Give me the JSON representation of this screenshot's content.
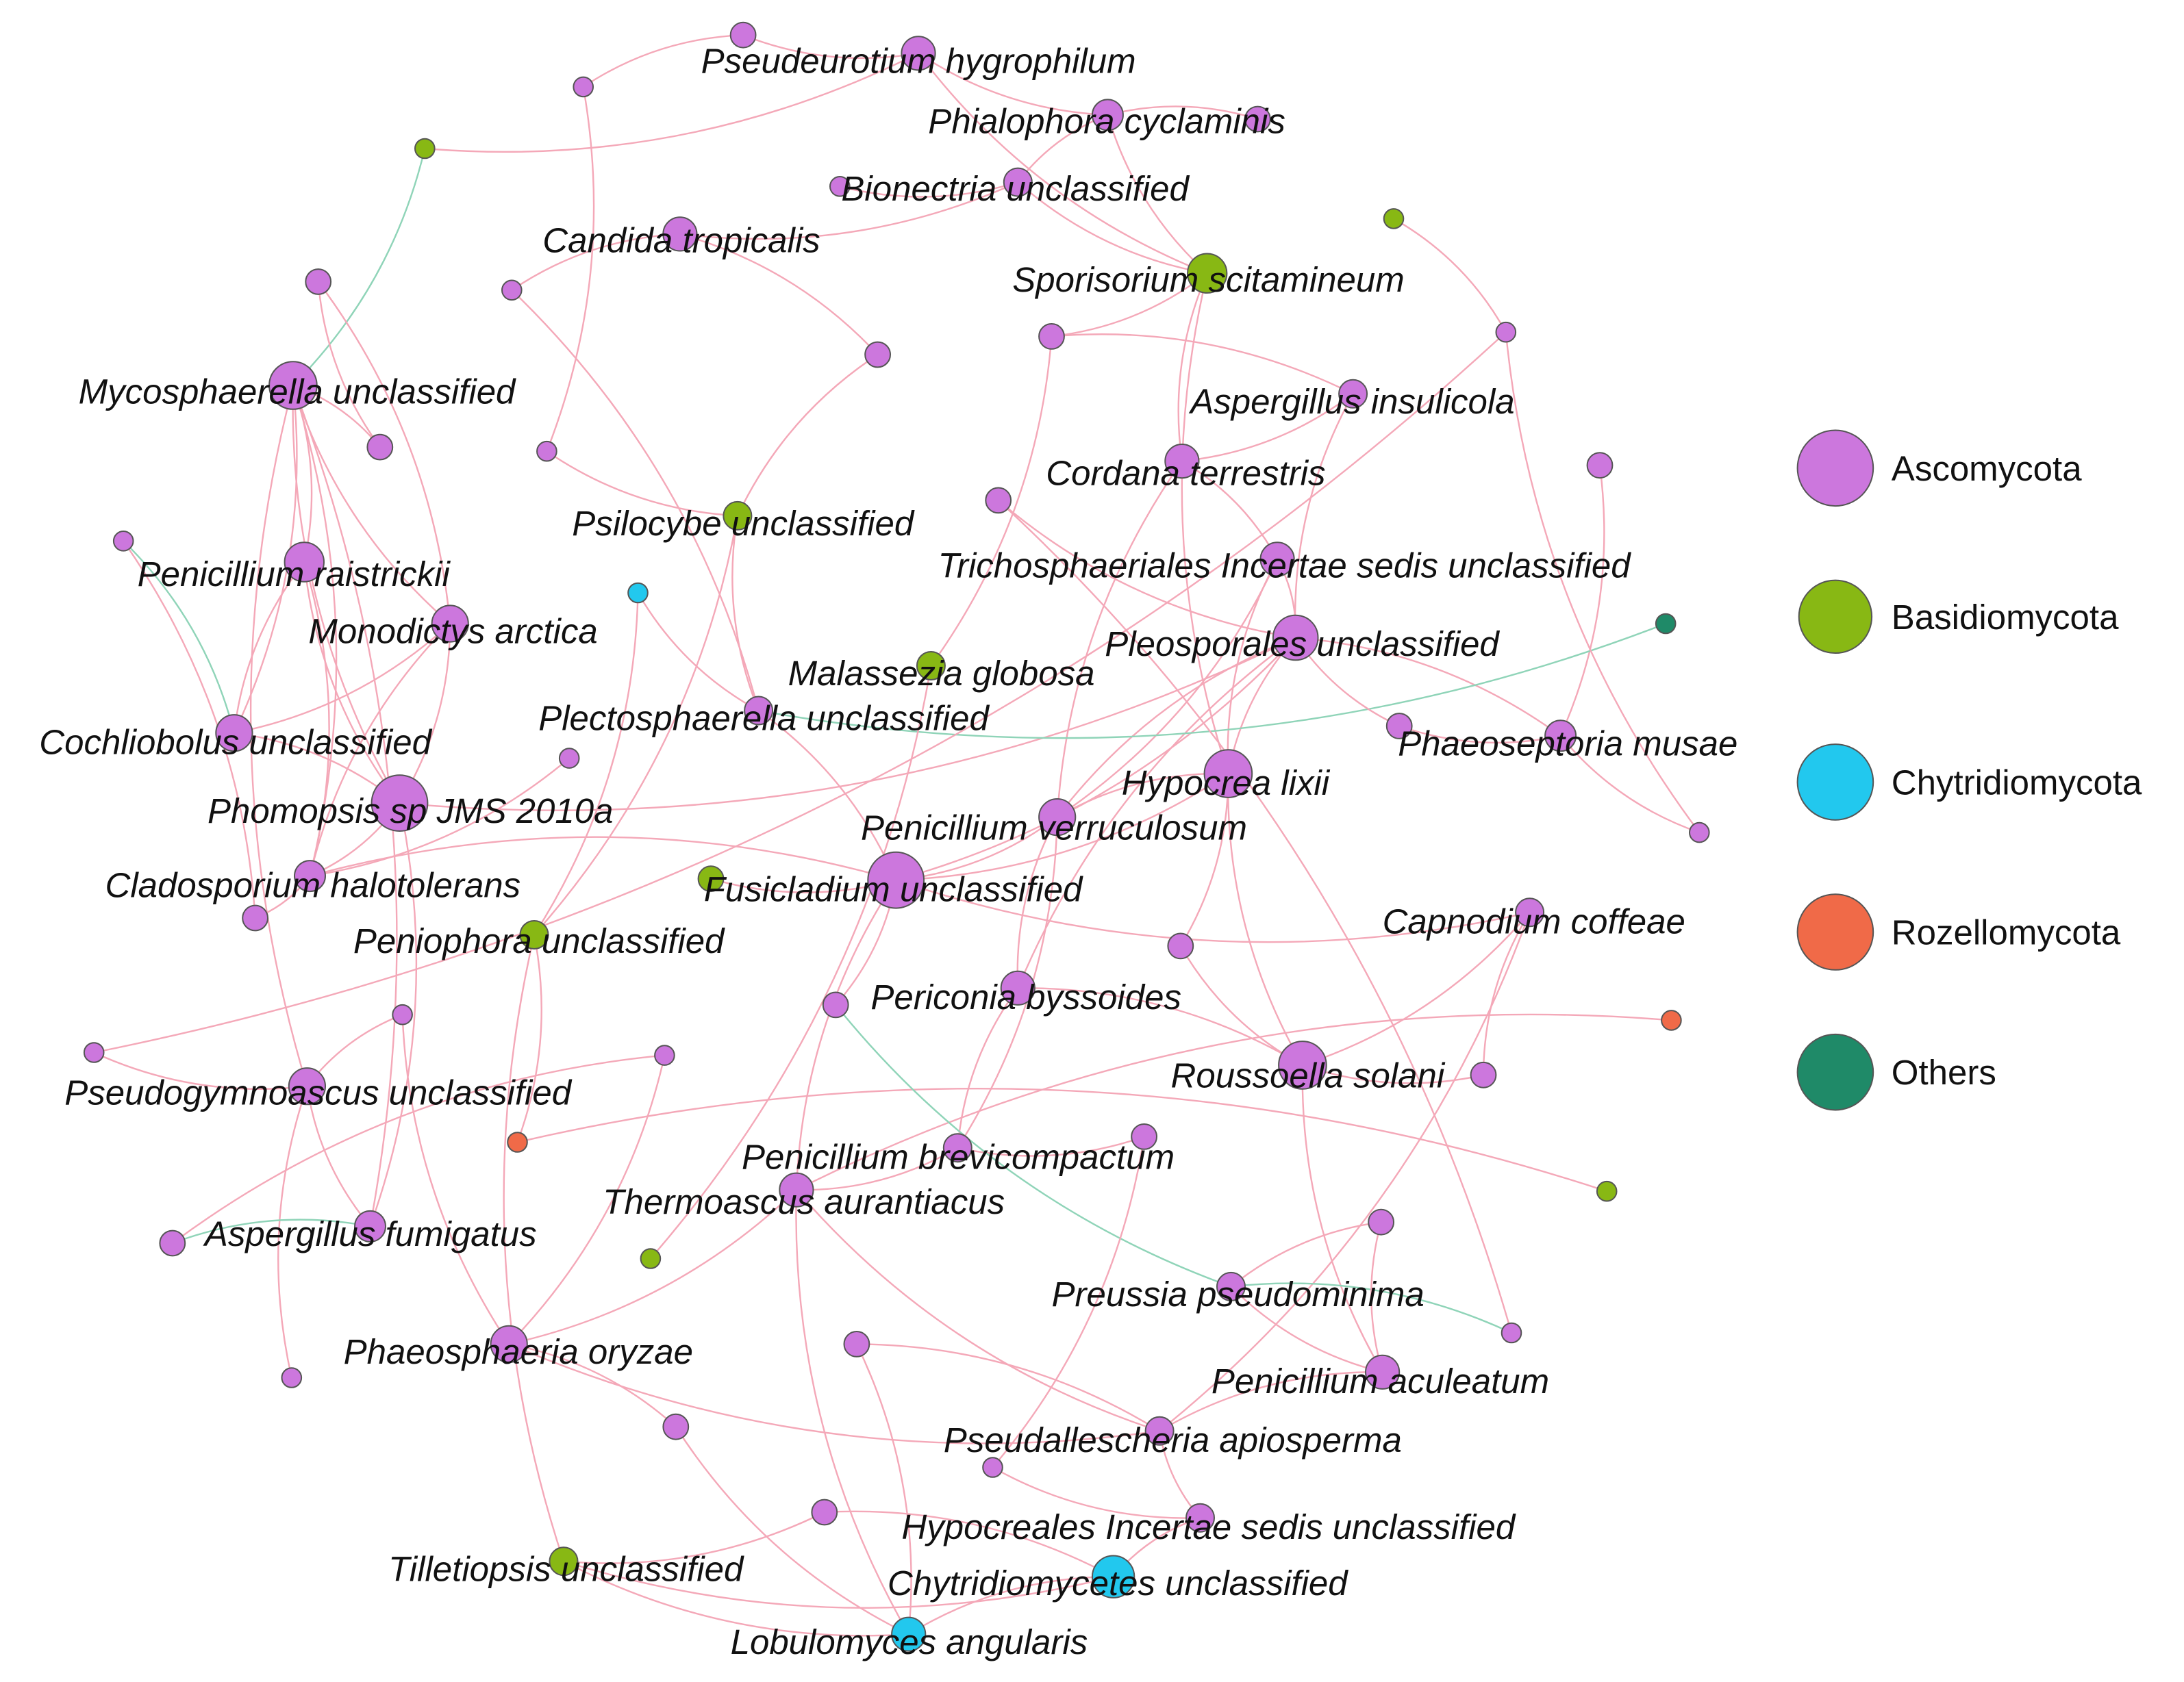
{
  "colors": {
    "Ascomycota": "#cc77dd",
    "Basidiomycota": "#88b814",
    "Chytridiomycota": "#22c8ee",
    "Rozellomycota": "#f06a48",
    "Others": "#1f8a68",
    "edge_positive": "#f4a8b8",
    "edge_negative": "#8fd4b8"
  },
  "legend": [
    {
      "label": "Ascomycota",
      "group": "Ascomycota"
    },
    {
      "label": "Basidiomycota",
      "group": "Basidiomycota"
    },
    {
      "label": "Chytridiomycota",
      "group": "Chytridiomycota"
    },
    {
      "label": "Rozellomycota",
      "group": "Rozellomycota"
    },
    {
      "label": "Others",
      "group": "Others"
    }
  ],
  "nodes": [
    {
      "id": "pseudeurotium",
      "label": "Pseudeurotium hygrophilum",
      "group": "Ascomycota"
    },
    {
      "id": "phialophora",
      "label": "Phialophora cyclaminis",
      "group": "Ascomycota"
    },
    {
      "id": "bionectria",
      "label": "Bionectria unclassified",
      "group": "Ascomycota"
    },
    {
      "id": "candida",
      "label": "Candida tropicalis",
      "group": "Ascomycota"
    },
    {
      "id": "sporisorium",
      "label": "Sporisorium scitamineum",
      "group": "Basidiomycota"
    },
    {
      "id": "mycosphaerella",
      "label": "Mycosphaerella unclassified",
      "group": "Ascomycota"
    },
    {
      "id": "aspergillus_ins",
      "label": "Aspergillus insulicola",
      "group": "Ascomycota"
    },
    {
      "id": "cordana",
      "label": "Cordana terrestris",
      "group": "Ascomycota"
    },
    {
      "id": "psilocybe",
      "label": "Psilocybe unclassified",
      "group": "Basidiomycota"
    },
    {
      "id": "penicillium_rai",
      "label": "Penicillium raistrickii",
      "group": "Ascomycota"
    },
    {
      "id": "trichosphaeriales",
      "label": "Trichosphaeriales Incertae sedis unclassified",
      "group": "Ascomycota"
    },
    {
      "id": "monodictys",
      "label": "Monodictys arctica",
      "group": "Ascomycota"
    },
    {
      "id": "pleosporales",
      "label": "Pleosporales unclassified",
      "group": "Ascomycota"
    },
    {
      "id": "malassezia",
      "label": "Malassezia globosa",
      "group": "Basidiomycota"
    },
    {
      "id": "plectosphaerella",
      "label": "Plectosphaerella unclassified",
      "group": "Ascomycota"
    },
    {
      "id": "cochliobolus",
      "label": "Cochliobolus unclassified",
      "group": "Ascomycota"
    },
    {
      "id": "phaeoseptoria",
      "label": "Phaeoseptoria musae",
      "group": "Ascomycota"
    },
    {
      "id": "hypocrea",
      "label": "Hypocrea lixii",
      "group": "Ascomycota"
    },
    {
      "id": "phomopsis",
      "label": "Phomopsis sp JMS 2010a",
      "group": "Ascomycota"
    },
    {
      "id": "penicillium_ver",
      "label": "Penicillium verruculosum",
      "group": "Ascomycota"
    },
    {
      "id": "cladosporium",
      "label": "Cladosporium halotolerans",
      "group": "Ascomycota"
    },
    {
      "id": "fusicladium",
      "label": "Fusicladium unclassified",
      "group": "Ascomycota"
    },
    {
      "id": "capnodium",
      "label": "Capnodium coffeae",
      "group": "Ascomycota"
    },
    {
      "id": "peniophora",
      "label": "Peniophora unclassified",
      "group": "Basidiomycota"
    },
    {
      "id": "periconia",
      "label": "Periconia byssoides",
      "group": "Ascomycota"
    },
    {
      "id": "pseudogymnoascus",
      "label": "Pseudogymnoascus unclassified",
      "group": "Ascomycota"
    },
    {
      "id": "roussoella",
      "label": "Roussoella solani",
      "group": "Ascomycota"
    },
    {
      "id": "penicillium_bre",
      "label": "Penicillium brevicompactum",
      "group": "Ascomycota"
    },
    {
      "id": "thermoascus",
      "label": "Thermoascus aurantiacus",
      "group": "Ascomycota"
    },
    {
      "id": "aspergillus_fum",
      "label": "Aspergillus fumigatus",
      "group": "Ascomycota"
    },
    {
      "id": "preussia",
      "label": "Preussia pseudominima",
      "group": "Ascomycota"
    },
    {
      "id": "phaeosphaeria",
      "label": "Phaeosphaeria oryzae",
      "group": "Ascomycota"
    },
    {
      "id": "penicillium_acu",
      "label": "Penicillium aculeatum",
      "group": "Ascomycota"
    },
    {
      "id": "pseudallescheria",
      "label": "Pseudallescheria apiosperma",
      "group": "Ascomycota"
    },
    {
      "id": "hypocreales",
      "label": "Hypocreales Incertae sedis unclassified",
      "group": "Ascomycota"
    },
    {
      "id": "tilletiopsis",
      "label": "Tilletiopsis unclassified",
      "group": "Basidiomycota"
    },
    {
      "id": "chytridiomycetes",
      "label": "Chytridiomycetes unclassified",
      "group": "Chytridiomycota"
    },
    {
      "id": "lobulomyces",
      "label": "Lobulomyces angularis",
      "group": "Chytridiomycota"
    },
    {
      "id": "u01",
      "label": "",
      "group": "Ascomycota"
    },
    {
      "id": "u02",
      "label": "",
      "group": "Basidiomycota"
    },
    {
      "id": "u03",
      "label": "",
      "group": "Ascomycota"
    },
    {
      "id": "u04",
      "label": "",
      "group": "Ascomycota"
    },
    {
      "id": "u05",
      "label": "",
      "group": "Ascomycota"
    },
    {
      "id": "u06",
      "label": "",
      "group": "Ascomycota"
    },
    {
      "id": "u07",
      "label": "",
      "group": "Ascomycota"
    },
    {
      "id": "u08",
      "label": "",
      "group": "Ascomycota"
    },
    {
      "id": "u09",
      "label": "",
      "group": "Ascomycota"
    },
    {
      "id": "u10",
      "label": "",
      "group": "Ascomycota"
    },
    {
      "id": "u11",
      "label": "",
      "group": "Ascomycota"
    },
    {
      "id": "u12",
      "label": "",
      "group": "Ascomycota"
    },
    {
      "id": "u13",
      "label": "",
      "group": "Ascomycota"
    },
    {
      "id": "u14",
      "label": "",
      "group": "Ascomycota"
    },
    {
      "id": "u15",
      "label": "",
      "group": "Chytridiomycota"
    },
    {
      "id": "u16",
      "label": "",
      "group": "Ascomycota"
    },
    {
      "id": "u17",
      "label": "",
      "group": "Others"
    },
    {
      "id": "u18",
      "label": "",
      "group": "Basidiomycota"
    },
    {
      "id": "u19",
      "label": "",
      "group": "Ascomycota"
    },
    {
      "id": "u20",
      "label": "",
      "group": "Ascomycota"
    },
    {
      "id": "u21",
      "label": "",
      "group": "Ascomycota"
    },
    {
      "id": "u22",
      "label": "",
      "group": "Ascomycota"
    },
    {
      "id": "u23",
      "label": "",
      "group": "Ascomycota"
    },
    {
      "id": "u24",
      "label": "",
      "group": "Basidiomycota"
    },
    {
      "id": "u25",
      "label": "",
      "group": "Ascomycota"
    },
    {
      "id": "u26",
      "label": "",
      "group": "Ascomycota"
    },
    {
      "id": "u27",
      "label": "",
      "group": "Ascomycota"
    },
    {
      "id": "u28",
      "label": "",
      "group": "Ascomycota"
    },
    {
      "id": "u29",
      "label": "",
      "group": "Rozellomycota"
    },
    {
      "id": "u30",
      "label": "",
      "group": "Ascomycota"
    },
    {
      "id": "u31",
      "label": "",
      "group": "Rozellomycota"
    },
    {
      "id": "u32",
      "label": "",
      "group": "Ascomycota"
    },
    {
      "id": "u33",
      "label": "",
      "group": "Ascomycota"
    },
    {
      "id": "u34",
      "label": "",
      "group": "Basidiomycota"
    },
    {
      "id": "u35",
      "label": "",
      "group": "Ascomycota"
    },
    {
      "id": "u36",
      "label": "",
      "group": "Ascomycota"
    },
    {
      "id": "u37",
      "label": "",
      "group": "Ascomycota"
    },
    {
      "id": "u38",
      "label": "",
      "group": "Ascomycota"
    },
    {
      "id": "u39",
      "label": "",
      "group": "Ascomycota"
    },
    {
      "id": "u40",
      "label": "",
      "group": "Ascomycota"
    },
    {
      "id": "u41",
      "label": "",
      "group": "Ascomycota"
    },
    {
      "id": "u42",
      "label": "",
      "group": "Basidiomycota"
    }
  ],
  "edges": [
    {
      "s": "mycosphaerella",
      "t": "penicillium_rai",
      "type": "positive"
    },
    {
      "s": "mycosphaerella",
      "t": "monodictys",
      "type": "positive"
    },
    {
      "s": "mycosphaerella",
      "t": "cochliobolus",
      "type": "positive"
    },
    {
      "s": "mycosphaerella",
      "t": "phomopsis",
      "type": "positive"
    },
    {
      "s": "mycosphaerella",
      "t": "cladosporium",
      "type": "positive"
    },
    {
      "s": "mycosphaerella",
      "t": "pseudogymnoascus",
      "type": "positive"
    },
    {
      "s": "mycosphaerella",
      "t": "aspergillus_fum",
      "type": "positive"
    },
    {
      "s": "mycosphaerella",
      "t": "u02",
      "type": "negative"
    },
    {
      "s": "mycosphaerella",
      "t": "u09",
      "type": "positive"
    },
    {
      "s": "penicillium_rai",
      "t": "phomopsis",
      "type": "positive"
    },
    {
      "s": "penicillium_rai",
      "t": "cladosporium",
      "type": "positive"
    },
    {
      "s": "penicillium_rai",
      "t": "cochliobolus",
      "type": "positive"
    },
    {
      "s": "monodictys",
      "t": "phomopsis",
      "type": "positive"
    },
    {
      "s": "monodictys",
      "t": "cladosporium",
      "type": "positive"
    },
    {
      "s": "monodictys",
      "t": "cochliobolus",
      "type": "positive"
    },
    {
      "s": "monodictys",
      "t": "u05",
      "type": "positive"
    },
    {
      "s": "cochliobolus",
      "t": "phomopsis",
      "type": "positive"
    },
    {
      "s": "cochliobolus",
      "t": "u10",
      "type": "negative"
    },
    {
      "s": "phomopsis",
      "t": "cladosporium",
      "type": "positive"
    },
    {
      "s": "phomopsis",
      "t": "pleosporales",
      "type": "positive"
    },
    {
      "s": "phomopsis",
      "t": "aspergillus_fum",
      "type": "positive"
    },
    {
      "s": "cladosporium",
      "t": "u14",
      "type": "positive"
    },
    {
      "s": "cladosporium",
      "t": "u11",
      "type": "positive"
    },
    {
      "s": "pseudogymnoascus",
      "t": "aspergillus_fum",
      "type": "positive"
    },
    {
      "s": "pseudogymnoascus",
      "t": "u27",
      "type": "positive"
    },
    {
      "s": "pseudogymnoascus",
      "t": "u33",
      "type": "positive"
    },
    {
      "s": "pseudogymnoascus",
      "t": "u26",
      "type": "positive"
    },
    {
      "s": "aspergillus_fum",
      "t": "u30",
      "type": "negative"
    },
    {
      "s": "u30",
      "t": "u28",
      "type": "positive"
    },
    {
      "s": "candida",
      "t": "bionectria",
      "type": "positive"
    },
    {
      "s": "candida",
      "t": "u08",
      "type": "positive"
    },
    {
      "s": "candida",
      "t": "u06",
      "type": "positive"
    },
    {
      "s": "bionectria",
      "t": "phialophora",
      "type": "positive"
    },
    {
      "s": "bionectria",
      "t": "sporisorium",
      "type": "positive"
    },
    {
      "s": "bionectria",
      "t": "u07",
      "type": "positive"
    },
    {
      "s": "pseudeurotium",
      "t": "phialophora",
      "type": "positive"
    },
    {
      "s": "pseudeurotium",
      "t": "u02",
      "type": "positive"
    },
    {
      "s": "pseudeurotium",
      "t": "sporisorium",
      "type": "positive"
    },
    {
      "s": "pseudeurotium",
      "t": "u01",
      "type": "positive"
    },
    {
      "s": "phialophora",
      "t": "sporisorium",
      "type": "positive"
    },
    {
      "s": "phialophora",
      "t": "u04",
      "type": "positive"
    },
    {
      "s": "sporisorium",
      "t": "cordana",
      "type": "positive"
    },
    {
      "s": "sporisorium",
      "t": "u12",
      "type": "positive"
    },
    {
      "s": "sporisorium",
      "t": "hypocrea",
      "type": "positive"
    },
    {
      "s": "u03",
      "t": "u13",
      "type": "positive"
    },
    {
      "s": "aspergillus_ins",
      "t": "pleosporales",
      "type": "positive"
    },
    {
      "s": "aspergillus_ins",
      "t": "cordana",
      "type": "positive"
    },
    {
      "s": "aspergillus_ins",
      "t": "u12",
      "type": "positive"
    },
    {
      "s": "cordana",
      "t": "trichosphaeriales",
      "type": "positive"
    },
    {
      "s": "cordana",
      "t": "penicillium_ver",
      "type": "positive"
    },
    {
      "s": "trichosphaeriales",
      "t": "pleosporales",
      "type": "positive"
    },
    {
      "s": "trichosphaeriales",
      "t": "hypocrea",
      "type": "positive"
    },
    {
      "s": "trichosphaeriales",
      "t": "penicillium_ver",
      "type": "positive"
    },
    {
      "s": "pleosporales",
      "t": "hypocrea",
      "type": "positive"
    },
    {
      "s": "pleosporales",
      "t": "phaeoseptoria",
      "type": "positive"
    },
    {
      "s": "pleosporales",
      "t": "penicillium_ver",
      "type": "positive"
    },
    {
      "s": "pleosporales",
      "t": "fusicladium",
      "type": "positive"
    },
    {
      "s": "pleosporales",
      "t": "periconia",
      "type": "positive"
    },
    {
      "s": "pleosporales",
      "t": "u20",
      "type": "positive"
    },
    {
      "s": "hypocrea",
      "t": "penicillium_ver",
      "type": "positive"
    },
    {
      "s": "hypocrea",
      "t": "fusicladium",
      "type": "positive"
    },
    {
      "s": "hypocrea",
      "t": "roussoella",
      "type": "positive"
    },
    {
      "s": "hypocrea",
      "t": "u25",
      "type": "positive"
    },
    {
      "s": "phaeoseptoria",
      "t": "u21",
      "type": "positive"
    },
    {
      "s": "phaeoseptoria",
      "t": "u22",
      "type": "positive"
    },
    {
      "s": "phaeoseptoria",
      "t": "u16",
      "type": "positive"
    },
    {
      "s": "plectosphaerella",
      "t": "u15",
      "type": "positive"
    },
    {
      "s": "plectosphaerella",
      "t": "u17",
      "type": "negative"
    },
    {
      "s": "plectosphaerella",
      "t": "fusicladium",
      "type": "positive"
    },
    {
      "s": "plectosphaerella",
      "t": "u06",
      "type": "positive"
    },
    {
      "s": "penicillium_ver",
      "t": "fusicladium",
      "type": "positive"
    },
    {
      "s": "penicillium_ver",
      "t": "periconia",
      "type": "positive"
    },
    {
      "s": "penicillium_ver",
      "t": "penicillium_bre",
      "type": "positive"
    },
    {
      "s": "fusicladium",
      "t": "capnodium",
      "type": "positive"
    },
    {
      "s": "fusicladium",
      "t": "u24",
      "type": "positive"
    },
    {
      "s": "fusicladium",
      "t": "thermoascus",
      "type": "positive"
    },
    {
      "s": "fusicladium",
      "t": "u23",
      "type": "positive"
    },
    {
      "s": "fusicladium",
      "t": "cladosporium",
      "type": "positive"
    },
    {
      "s": "capnodium",
      "t": "roussoella",
      "type": "positive"
    },
    {
      "s": "capnodium",
      "t": "u32",
      "type": "positive"
    },
    {
      "s": "capnodium",
      "t": "pseudallescheria",
      "type": "positive"
    },
    {
      "s": "periconia",
      "t": "penicillium_bre",
      "type": "positive"
    },
    {
      "s": "periconia",
      "t": "roussoella",
      "type": "positive"
    },
    {
      "s": "roussoella",
      "t": "u32",
      "type": "positive"
    },
    {
      "s": "roussoella",
      "t": "u25",
      "type": "positive"
    },
    {
      "s": "roussoella",
      "t": "penicillium_acu",
      "type": "positive"
    },
    {
      "s": "penicillium_bre",
      "t": "thermoascus",
      "type": "positive"
    },
    {
      "s": "penicillium_bre",
      "t": "u37",
      "type": "positive"
    },
    {
      "s": "thermoascus",
      "t": "u31",
      "type": "positive"
    },
    {
      "s": "thermoascus",
      "t": "pseudallescheria",
      "type": "positive"
    },
    {
      "s": "thermoascus",
      "t": "phaeosphaeria",
      "type": "positive"
    },
    {
      "s": "thermoascus",
      "t": "lobulomyces",
      "type": "positive"
    },
    {
      "s": "u29",
      "t": "u42",
      "type": "positive"
    },
    {
      "s": "u23",
      "t": "preussia",
      "type": "negative"
    },
    {
      "s": "preussia",
      "t": "u36",
      "type": "negative"
    },
    {
      "s": "preussia",
      "t": "penicillium_acu",
      "type": "positive"
    },
    {
      "s": "preussia",
      "t": "u35",
      "type": "positive"
    },
    {
      "s": "penicillium_acu",
      "t": "pseudallescheria",
      "type": "positive"
    },
    {
      "s": "penicillium_acu",
      "t": "u35",
      "type": "positive"
    },
    {
      "s": "pseudallescheria",
      "t": "hypocreales",
      "type": "positive"
    },
    {
      "s": "pseudallescheria",
      "t": "phaeosphaeria",
      "type": "positive"
    },
    {
      "s": "pseudallescheria",
      "t": "u38",
      "type": "positive"
    },
    {
      "s": "phaeosphaeria",
      "t": "u39",
      "type": "positive"
    },
    {
      "s": "phaeosphaeria",
      "t": "u28",
      "type": "positive"
    },
    {
      "s": "phaeosphaeria",
      "t": "u26",
      "type": "positive"
    },
    {
      "s": "hypocreales",
      "t": "chytridiomycetes",
      "type": "positive"
    },
    {
      "s": "hypocreales",
      "t": "u40",
      "type": "positive"
    },
    {
      "s": "chytridiomycetes",
      "t": "lobulomyces",
      "type": "positive"
    },
    {
      "s": "chytridiomycetes",
      "t": "tilletiopsis",
      "type": "positive"
    },
    {
      "s": "chytridiomycetes",
      "t": "u41",
      "type": "positive"
    },
    {
      "s": "lobulomyces",
      "t": "tilletiopsis",
      "type": "positive"
    },
    {
      "s": "lobulomyces",
      "t": "u38",
      "type": "positive"
    },
    {
      "s": "lobulomyces",
      "t": "u39",
      "type": "positive"
    },
    {
      "s": "tilletiopsis",
      "t": "u41",
      "type": "positive"
    },
    {
      "s": "tilletiopsis",
      "t": "peniophora",
      "type": "positive"
    },
    {
      "s": "peniophora",
      "t": "psilocybe",
      "type": "positive"
    },
    {
      "s": "peniophora",
      "t": "u29",
      "type": "positive"
    },
    {
      "s": "peniophora",
      "t": "u15",
      "type": "positive"
    },
    {
      "s": "psilocybe",
      "t": "u08",
      "type": "positive"
    },
    {
      "s": "psilocybe",
      "t": "plectosphaerella",
      "type": "positive"
    },
    {
      "s": "psilocybe",
      "t": "u13",
      "type": "positive"
    },
    {
      "s": "malassezia",
      "t": "u12",
      "type": "positive"
    },
    {
      "s": "malassezia",
      "t": "u34",
      "type": "positive"
    },
    {
      "s": "u05",
      "t": "u09",
      "type": "positive"
    },
    {
      "s": "u18",
      "t": "u19",
      "type": "positive"
    },
    {
      "s": "u19",
      "t": "u21",
      "type": "positive"
    },
    {
      "s": "u10",
      "t": "u11",
      "type": "positive"
    },
    {
      "s": "u27",
      "t": "u19",
      "type": "positive"
    },
    {
      "s": "u37",
      "t": "u40",
      "type": "positive"
    },
    {
      "s": "u36",
      "t": "u20",
      "type": "positive"
    },
    {
      "s": "u22",
      "t": "pleosporales",
      "type": "positive"
    },
    {
      "s": "u01",
      "t": "u03",
      "type": "positive"
    }
  ]
}
